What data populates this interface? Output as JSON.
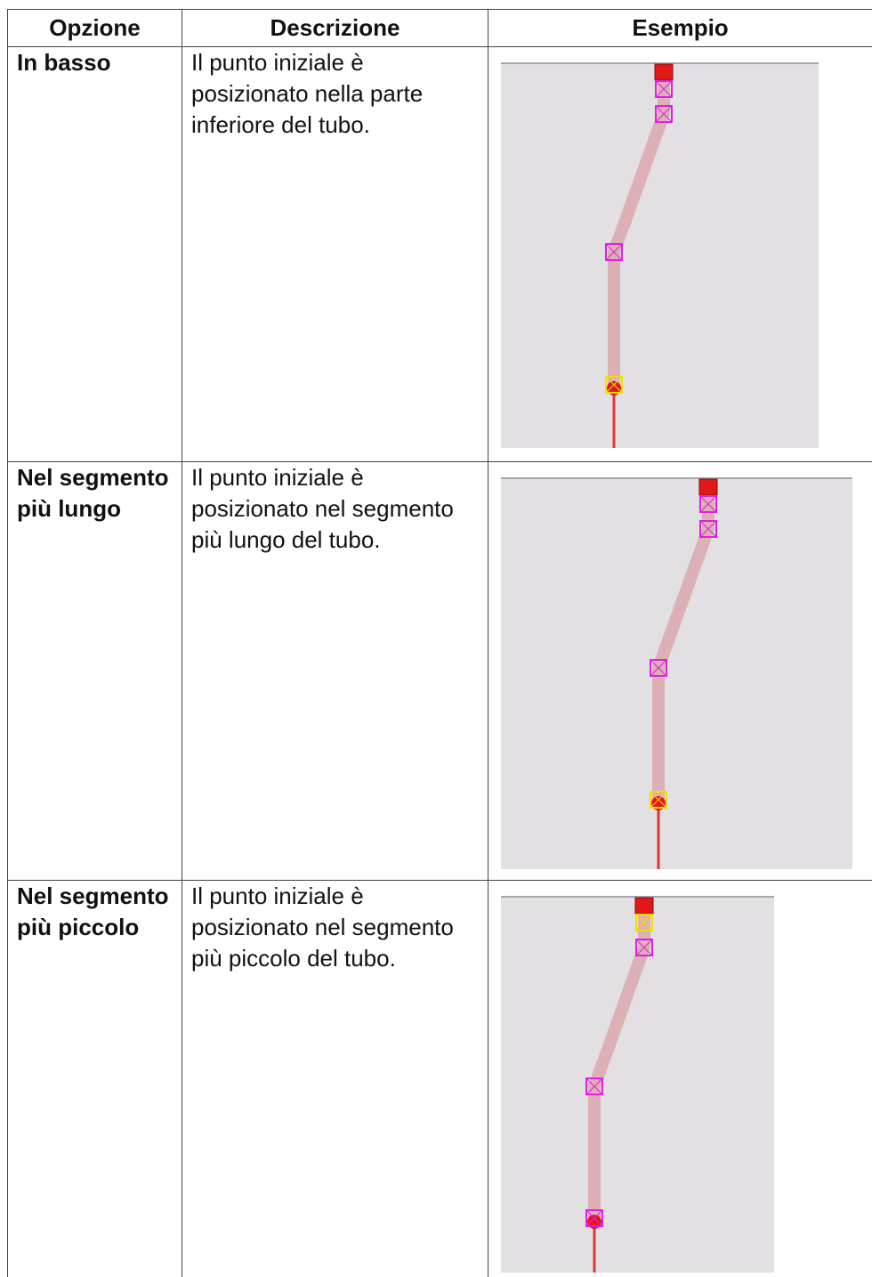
{
  "table": {
    "header": [
      "Opzione",
      "Descrizione",
      "Esempio"
    ],
    "rows": [
      [
        "In basso",
        "Il punto iniziale è posizionato nella parte inferiore del tubo."
      ],
      [
        "Nel segmento più lungo",
        "Il punto iniziale è posizionato nel segmento più lungo del tubo."
      ],
      [
        "Nel segmento più piccolo",
        "Il punto iniziale è posizionato nel segmento più piccolo del tubo."
      ]
    ]
  }
}
